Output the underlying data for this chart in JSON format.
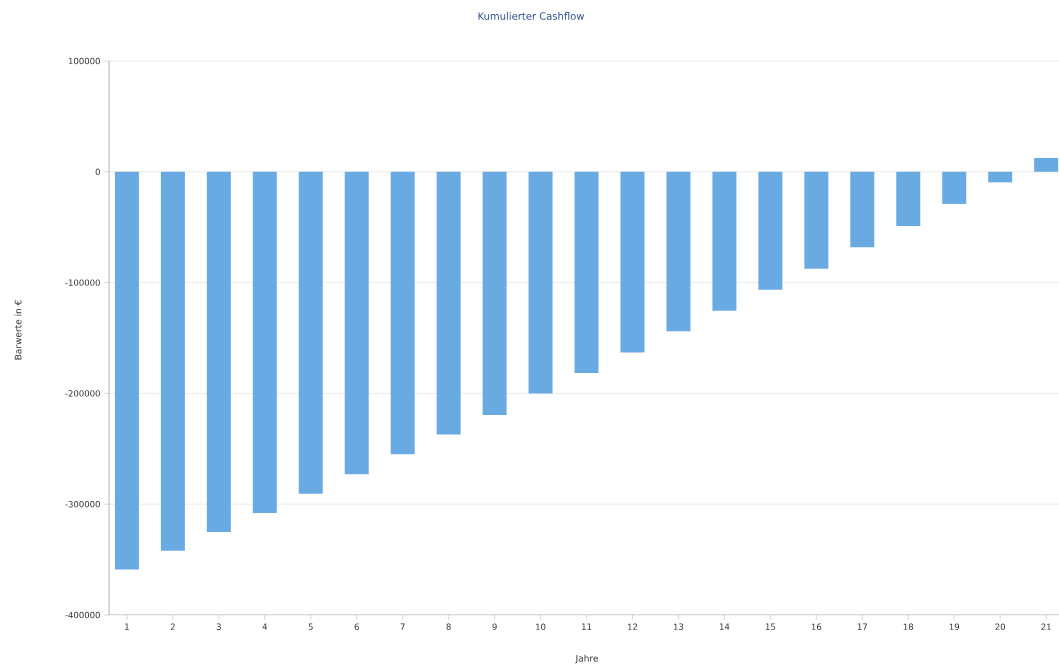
{
  "chart_data": {
    "type": "bar",
    "title": "Kumulierter Cashflow",
    "xlabel": "Jahre",
    "ylabel": "Barwerte in €",
    "categories": [
      "1",
      "2",
      "3",
      "4",
      "5",
      "6",
      "7",
      "8",
      "9",
      "10",
      "11",
      "12",
      "13",
      "14",
      "15",
      "16",
      "17",
      "18",
      "19",
      "20",
      "21"
    ],
    "values": [
      -359000,
      -342000,
      -325000,
      -308000,
      -290500,
      -273000,
      -255000,
      -237000,
      -219500,
      -200000,
      -181500,
      -163000,
      -144000,
      -125500,
      -106500,
      -87500,
      -68000,
      -49000,
      -29000,
      -9500,
      12500
    ],
    "color": "#6aaae3",
    "ylim": [
      -400000,
      100000
    ],
    "yticks": [
      -400000,
      -300000,
      -200000,
      -100000,
      0,
      100000
    ],
    "grid": "y"
  }
}
